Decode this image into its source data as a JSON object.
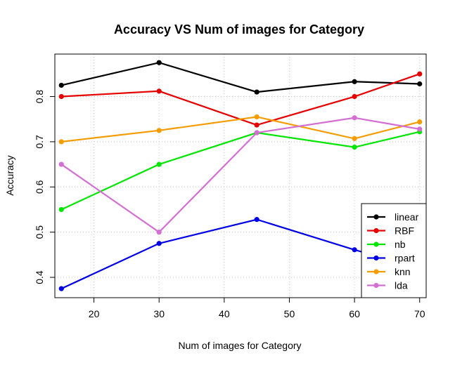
{
  "chart_data": {
    "type": "line",
    "title": "Accuracy VS Num of images for Category",
    "xlabel": "Num of images for Category",
    "ylabel": "Accuracy",
    "x": [
      15,
      30,
      45,
      60,
      70
    ],
    "xlim": [
      14,
      71
    ],
    "ylim": [
      0.355,
      0.894
    ],
    "xticks": [
      20,
      30,
      40,
      50,
      60,
      70
    ],
    "yticks": [
      0.4,
      0.5,
      0.6,
      0.7,
      0.8
    ],
    "grid": true,
    "legend_position": "bottom-right",
    "series": [
      {
        "name": "linear",
        "color": "#000000",
        "values": [
          0.825,
          0.875,
          0.81,
          0.833,
          0.828
        ]
      },
      {
        "name": "RBF",
        "color": "#e60000",
        "values": [
          0.8,
          0.812,
          0.737,
          0.8,
          0.85
        ]
      },
      {
        "name": "nb",
        "color": "#00e600",
        "values": [
          0.55,
          0.65,
          0.72,
          0.688,
          0.722
        ]
      },
      {
        "name": "rpart",
        "color": "#0000e6",
        "values": [
          0.375,
          0.475,
          0.528,
          0.461,
          0.42
        ]
      },
      {
        "name": "knn",
        "color": "#f59c00",
        "values": [
          0.7,
          0.725,
          0.755,
          0.707,
          0.744
        ]
      },
      {
        "name": "lda",
        "color": "#d36fd3",
        "values": [
          0.65,
          0.5,
          0.72,
          0.753,
          0.728
        ]
      }
    ]
  }
}
